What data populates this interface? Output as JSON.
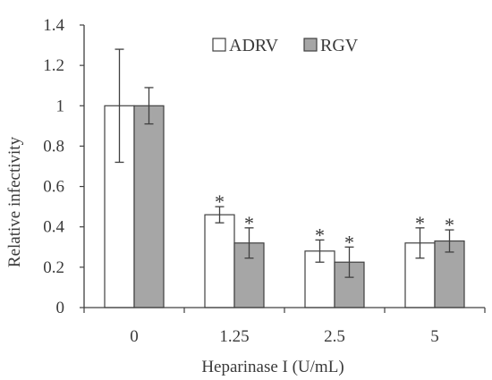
{
  "chart_data": {
    "type": "bar",
    "categories": [
      "0",
      "1.25",
      "2.5",
      "5"
    ],
    "series": [
      {
        "name": "ADRV",
        "values": [
          1.0,
          0.46,
          0.28,
          0.32
        ],
        "errors": [
          0.28,
          0.04,
          0.055,
          0.075
        ],
        "significant": [
          false,
          true,
          true,
          true
        ],
        "color": "#ffffff"
      },
      {
        "name": "RGV",
        "values": [
          1.0,
          0.32,
          0.225,
          0.33
        ],
        "errors": [
          0.09,
          0.075,
          0.075,
          0.055
        ],
        "significant": [
          false,
          true,
          true,
          true
        ],
        "color": "#a6a6a6"
      }
    ],
    "xlabel": "Heparinase I (U/mL)",
    "ylabel": "Relative infectivity",
    "ylim": [
      0,
      1.4
    ],
    "yticks": [
      "0",
      "0.2",
      "0.4",
      "0.6",
      "0.8",
      "1",
      "1.2",
      "1.4"
    ],
    "significance_marker": "*",
    "legend_position": "top-right",
    "grid": false
  }
}
